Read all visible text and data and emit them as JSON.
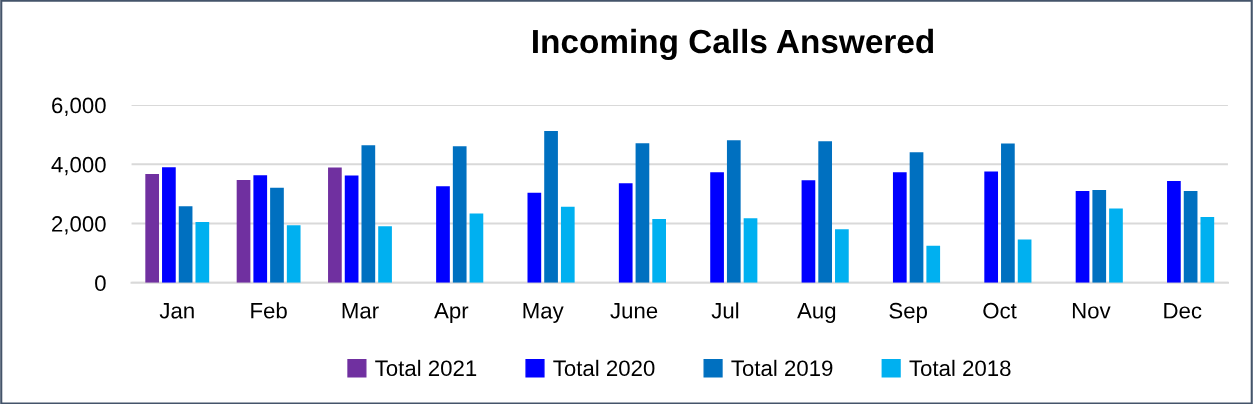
{
  "chart_data": {
    "type": "bar",
    "title": "Incoming Calls Answered",
    "categories": [
      "Jan",
      "Feb",
      "Mar",
      "Apr",
      "May",
      "June",
      "Jul",
      "Aug",
      "Sep",
      "Oct",
      "Nov",
      "Dec"
    ],
    "series": [
      {
        "name": "Total 2021",
        "color": "#7030a0",
        "values": [
          3670,
          3470,
          3890,
          null,
          null,
          null,
          null,
          null,
          null,
          null,
          null,
          null
        ]
      },
      {
        "name": "Total 2020",
        "color": "#0000ff",
        "values": [
          3900,
          3630,
          3620,
          3260,
          3040,
          3360,
          3730,
          3460,
          3730,
          3760,
          3100,
          3440
        ]
      },
      {
        "name": "Total 2019",
        "color": "#0070c0",
        "values": [
          2580,
          3210,
          4640,
          4610,
          5120,
          4710,
          4810,
          4780,
          4410,
          4700,
          3130,
          3100
        ]
      },
      {
        "name": "Total 2018",
        "color": "#00b0f0",
        "values": [
          2050,
          1940,
          1910,
          2340,
          2570,
          2150,
          2180,
          1810,
          1250,
          1460,
          2510,
          2220
        ]
      }
    ],
    "ylim": [
      0,
      6000
    ],
    "yticks": [
      0,
      {
        "value": 2000,
        "label": "2,000"
      },
      {
        "value": 4000,
        "label": "4,000"
      },
      {
        "value": 6000,
        "label": "6,000"
      }
    ],
    "grid": "y",
    "legend": "bottom"
  }
}
